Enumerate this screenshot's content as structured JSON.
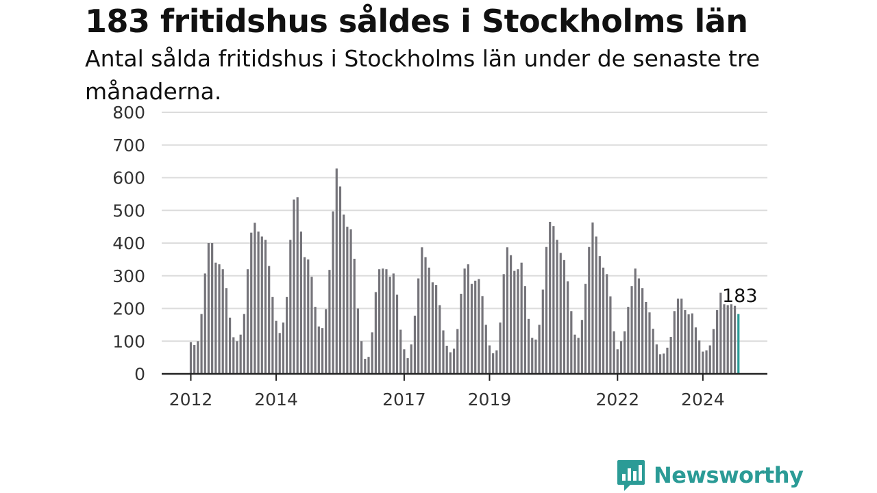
{
  "title": "183 fritidshus såldes i Stockholms län",
  "subtitle": "Antal sålda fritidshus i Stockholms län under de senaste tre månaderna.",
  "brand": {
    "name": "Newsworthy",
    "color": "#2b9b96",
    "icon": "bar-chart-speech-bubble-icon"
  },
  "chart_data": {
    "type": "bar",
    "ylim": [
      0,
      800
    ],
    "yticks": [
      0,
      100,
      200,
      300,
      400,
      500,
      600,
      700,
      800
    ],
    "grid": true,
    "x_tick_labels": [
      "2012",
      "2014",
      "2017",
      "2019",
      "2022",
      "2024"
    ],
    "start": "2012-01",
    "bar_color": "#75747a",
    "highlight_color": "#2b9b96",
    "highlight_label": "183",
    "series": [
      {
        "values": [
          97,
          88,
          100,
          183,
          307,
          400,
          400,
          340,
          335,
          320,
          262,
          172,
          112,
          100,
          120,
          183,
          320,
          432,
          462,
          435,
          420,
          410,
          330,
          235,
          162,
          125,
          157,
          235,
          410,
          533,
          540,
          435,
          357,
          350,
          297,
          205,
          145,
          140,
          198,
          318,
          497,
          628,
          573,
          487,
          450,
          442,
          352,
          200,
          100,
          46,
          52,
          127,
          250,
          320,
          322,
          320,
          297,
          307,
          242,
          135,
          75,
          48,
          90,
          178,
          292,
          387,
          357,
          325,
          280,
          272,
          210,
          133,
          86,
          66,
          77,
          137,
          245,
          322,
          335,
          275,
          285,
          290,
          238,
          150,
          87,
          63,
          72,
          157,
          305,
          387,
          363,
          315,
          320,
          340,
          268,
          168,
          110,
          105,
          150,
          258,
          388,
          465,
          452,
          410,
          370,
          348,
          283,
          192,
          120,
          110,
          165,
          275,
          388,
          463,
          420,
          360,
          325,
          305,
          237,
          130,
          75,
          100,
          130,
          205,
          268,
          322,
          292,
          262,
          220,
          188,
          138,
          90,
          60,
          62,
          80,
          113,
          192,
          230,
          230,
          195,
          182,
          185,
          142,
          102,
          68,
          72,
          87,
          137,
          195,
          248,
          213,
          210,
          213,
          208,
          183
        ]
      }
    ]
  }
}
